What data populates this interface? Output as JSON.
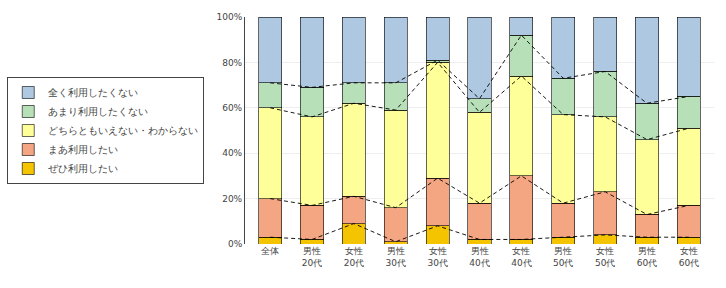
{
  "chart_data": {
    "type": "bar",
    "stacked": true,
    "categories": [
      "全体",
      "男性\n20代",
      "女性\n20代",
      "男性\n30代",
      "女性\n30代",
      "男性\n40代",
      "女性\n40代",
      "男性\n50代",
      "女性\n50代",
      "男性\n60代",
      "女性\n60代"
    ],
    "series": [
      {
        "name": "ぜひ利用したい",
        "color": "#f5c400",
        "values": [
          3,
          2,
          9,
          1,
          8,
          2,
          2,
          3,
          4,
          3,
          3
        ]
      },
      {
        "name": "まあ利用したい",
        "color": "#f4a582",
        "values": [
          17,
          15,
          12,
          15,
          21,
          16,
          28,
          15,
          19,
          10,
          14
        ]
      },
      {
        "name": "どちらともいえない・わからない",
        "color": "#ffff99",
        "values": [
          40,
          39,
          41,
          43,
          51,
          40,
          44,
          39,
          33,
          33,
          34
        ]
      },
      {
        "name": "あまり利用したくない",
        "color": "#b8e0b8",
        "values": [
          11,
          13,
          9,
          12,
          1,
          6,
          18,
          16,
          20,
          16,
          14
        ]
      },
      {
        "name": "全く利用したくない",
        "color": "#adc8e0",
        "values": [
          29,
          31,
          29,
          29,
          19,
          36,
          8,
          27,
          24,
          38,
          35
        ]
      }
    ],
    "ylim": [
      0,
      100
    ],
    "yticks": [
      {
        "value": 0,
        "label": "0%"
      },
      {
        "value": 20,
        "label": "20%"
      },
      {
        "value": 40,
        "label": "40%"
      },
      {
        "value": 60,
        "label": "60%"
      },
      {
        "value": 80,
        "label": "80%"
      },
      {
        "value": 100,
        "label": "100%"
      }
    ],
    "grid": true,
    "legend": "left"
  }
}
